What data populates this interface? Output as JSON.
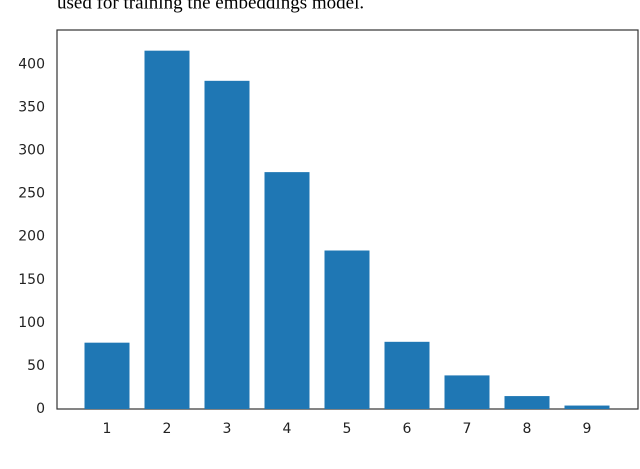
{
  "caption_fragment": "used for training the embeddings model.",
  "chart_data": {
    "type": "bar",
    "categories": [
      "1",
      "2",
      "3",
      "4",
      "5",
      "6",
      "7",
      "8",
      "9"
    ],
    "values": [
      77,
      416,
      381,
      275,
      184,
      78,
      39,
      15,
      4
    ],
    "color": "#1f77b4",
    "ylim": [
      0,
      440
    ],
    "yticks": [
      0,
      50,
      100,
      150,
      200,
      250,
      300,
      350,
      400
    ],
    "grid": false
  }
}
